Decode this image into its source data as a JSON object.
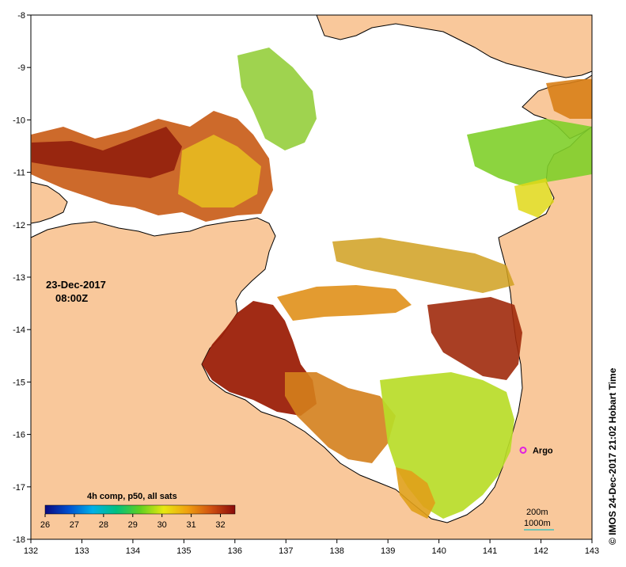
{
  "map": {
    "lon_range": [
      132,
      143
    ],
    "lat_range": [
      -18,
      -8
    ],
    "x_ticks": [
      "132",
      "133",
      "134",
      "135",
      "136",
      "137",
      "138",
      "139",
      "140",
      "141",
      "142",
      "143"
    ],
    "y_ticks": [
      "-8",
      "-9",
      "-10",
      "-11",
      "-12",
      "-13",
      "-14",
      "-15",
      "-16",
      "-17",
      "-18"
    ],
    "land_color": "#f9c89b",
    "ocean_color": "#ffffff"
  },
  "date": {
    "line1": "23-Dec-2017",
    "line2": "08:00Z"
  },
  "legend": {
    "title": "4h comp, p50, all sats",
    "ticks": [
      "26",
      "27",
      "28",
      "29",
      "30",
      "31",
      "32"
    ],
    "range": [
      26,
      32.5
    ],
    "colors": [
      "#0a0a80",
      "#0050d0",
      "#00b0e8",
      "#00c080",
      "#60d020",
      "#e8e810",
      "#f0a010",
      "#d05010",
      "#8a0a0a"
    ]
  },
  "argo": {
    "label": "Argo",
    "lon": 141.65,
    "lat": -16.3,
    "color": "#e020e0"
  },
  "scale": {
    "line1": "200m",
    "line2": "1000m",
    "color": "#20c0c0"
  },
  "credit": "© IMOS 24-Dec-2017 21:02 Hobart Time"
}
